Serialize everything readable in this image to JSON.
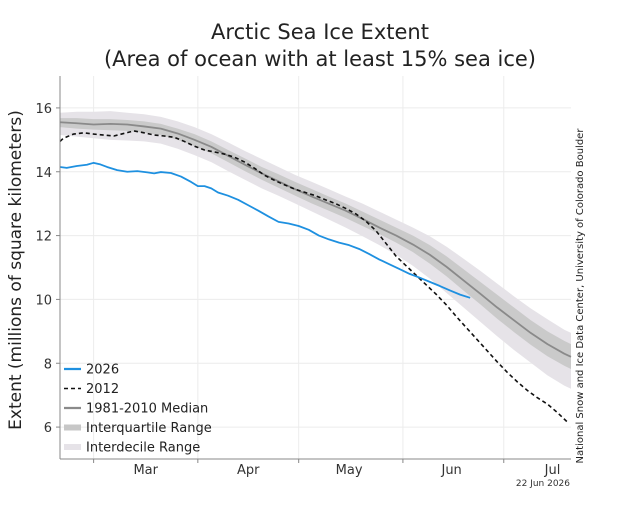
{
  "chart_data": {
    "type": "line",
    "title": "Arctic Sea Ice Extent",
    "subtitle": "(Area of ocean with at least 15% sea ice)",
    "ylabel": "Extent (millions of square kilometers)",
    "xlabel": "",
    "ylim": [
      5,
      17
    ],
    "yticks": [
      6,
      8,
      10,
      12,
      14,
      16
    ],
    "xlim": [
      50,
      202
    ],
    "month_ticks": [
      {
        "label": "Mar",
        "day": 75.5
      },
      {
        "label": "Apr",
        "day": 106
      },
      {
        "label": "May",
        "day": 136
      },
      {
        "label": "Jun",
        "day": 166.5
      },
      {
        "label": "Jul",
        "day": 196.5
      }
    ],
    "month_boundaries": [
      60,
      91,
      121,
      152,
      182
    ],
    "credit": "National Snow and Ice Data Center, University of Colorado Boulder",
    "date_stamp": "22 Jun 2026",
    "legend_position": "lower-left",
    "series": [
      {
        "name": "2026",
        "color": "#1e90e0",
        "style": "solid",
        "x": [
          50,
          52,
          55,
          58,
          60,
          62,
          64,
          67,
          70,
          73,
          76,
          78,
          80,
          83,
          86,
          89,
          91,
          93,
          95,
          97,
          100,
          103,
          106,
          109,
          112,
          115,
          118,
          121,
          124,
          127,
          130,
          133,
          136,
          139,
          142,
          145,
          148,
          151,
          154,
          157,
          160,
          163,
          166,
          169,
          172
        ],
        "y": [
          14.15,
          14.12,
          14.18,
          14.22,
          14.28,
          14.23,
          14.15,
          14.05,
          14.0,
          14.02,
          13.98,
          13.95,
          13.99,
          13.96,
          13.85,
          13.68,
          13.55,
          13.55,
          13.48,
          13.35,
          13.25,
          13.12,
          12.95,
          12.78,
          12.6,
          12.43,
          12.38,
          12.3,
          12.18,
          12.0,
          11.88,
          11.78,
          11.7,
          11.58,
          11.42,
          11.25,
          11.1,
          10.95,
          10.8,
          10.68,
          10.55,
          10.42,
          10.28,
          10.15,
          10.05
        ]
      },
      {
        "name": "2012",
        "color": "#111111",
        "style": "dashed",
        "x": [
          50,
          51,
          54,
          57,
          60,
          63,
          66,
          69,
          72,
          75,
          78,
          81,
          84,
          87,
          90,
          93,
          96,
          99,
          102,
          105,
          108,
          111,
          114,
          117,
          120,
          123,
          126,
          129,
          132,
          135,
          138,
          141,
          144,
          147,
          150,
          153,
          156,
          159,
          162,
          165,
          168,
          171,
          174,
          177,
          180,
          183,
          186,
          189,
          192,
          195,
          198,
          201
        ],
        "y": [
          14.95,
          15.05,
          15.18,
          15.22,
          15.18,
          15.15,
          15.12,
          15.2,
          15.28,
          15.22,
          15.15,
          15.12,
          15.08,
          14.95,
          14.8,
          14.68,
          14.62,
          14.55,
          14.45,
          14.3,
          14.1,
          13.88,
          13.72,
          13.58,
          13.45,
          13.35,
          13.25,
          13.12,
          13.0,
          12.85,
          12.68,
          12.45,
          12.15,
          11.75,
          11.35,
          11.05,
          10.75,
          10.45,
          10.15,
          9.82,
          9.45,
          9.1,
          8.75,
          8.4,
          8.05,
          7.72,
          7.42,
          7.15,
          6.92,
          6.72,
          6.45,
          6.15
        ]
      },
      {
        "name": "1981-2010 Median",
        "color": "#8a8a8a",
        "style": "solid",
        "x": [
          50,
          55,
          60,
          65,
          70,
          75,
          80,
          85,
          90,
          95,
          100,
          105,
          110,
          115,
          120,
          125,
          130,
          135,
          140,
          145,
          150,
          155,
          160,
          165,
          170,
          175,
          180,
          185,
          190,
          195,
          200,
          202
        ],
        "y": [
          15.55,
          15.52,
          15.48,
          15.5,
          15.48,
          15.42,
          15.35,
          15.2,
          15.0,
          14.78,
          14.5,
          14.22,
          13.95,
          13.7,
          13.45,
          13.22,
          13.0,
          12.78,
          12.52,
          12.25,
          12.0,
          11.72,
          11.4,
          11.02,
          10.6,
          10.18,
          9.75,
          9.35,
          8.95,
          8.6,
          8.3,
          8.2
        ]
      }
    ],
    "bands": [
      {
        "name": "Interquartile Range",
        "color": "#c7c7c7",
        "opacity": 0.9,
        "x": [
          50,
          55,
          60,
          65,
          70,
          75,
          80,
          85,
          90,
          95,
          100,
          105,
          110,
          115,
          120,
          125,
          130,
          135,
          140,
          145,
          150,
          155,
          160,
          165,
          170,
          175,
          180,
          185,
          190,
          195,
          200,
          202
        ],
        "upper": [
          15.68,
          15.68,
          15.65,
          15.65,
          15.62,
          15.58,
          15.5,
          15.35,
          15.18,
          14.95,
          14.68,
          14.42,
          14.15,
          13.92,
          13.68,
          13.45,
          13.22,
          13.0,
          12.75,
          12.5,
          12.25,
          12.0,
          11.7,
          11.35,
          10.95,
          10.55,
          10.15,
          9.75,
          9.35,
          9.0,
          8.7,
          8.6
        ],
        "lower": [
          15.4,
          15.35,
          15.32,
          15.3,
          15.28,
          15.22,
          15.15,
          15.0,
          14.8,
          14.58,
          14.3,
          14.02,
          13.75,
          13.5,
          13.25,
          13.0,
          12.78,
          12.55,
          12.3,
          12.05,
          11.78,
          11.48,
          11.12,
          10.72,
          10.28,
          9.85,
          9.4,
          8.98,
          8.58,
          8.22,
          7.92,
          7.82
        ]
      },
      {
        "name": "Interdecile Range",
        "color": "#e6e3e8",
        "opacity": 1,
        "x": [
          50,
          55,
          60,
          65,
          70,
          75,
          80,
          85,
          90,
          95,
          100,
          105,
          110,
          115,
          120,
          125,
          130,
          135,
          140,
          145,
          150,
          155,
          160,
          165,
          170,
          175,
          180,
          185,
          190,
          195,
          200,
          202
        ],
        "upper": [
          15.85,
          15.88,
          15.88,
          15.9,
          15.85,
          15.8,
          15.72,
          15.58,
          15.4,
          15.18,
          14.92,
          14.65,
          14.4,
          14.15,
          13.9,
          13.68,
          13.45,
          13.22,
          13.0,
          12.75,
          12.5,
          12.25,
          11.98,
          11.65,
          11.28,
          10.9,
          10.5,
          10.1,
          9.72,
          9.38,
          9.05,
          8.95
        ],
        "lower": [
          15.15,
          15.1,
          15.05,
          15.0,
          14.98,
          14.95,
          14.88,
          14.72,
          14.52,
          14.3,
          14.02,
          13.75,
          13.48,
          13.25,
          13.0,
          12.75,
          12.5,
          12.25,
          11.98,
          11.7,
          11.4,
          11.05,
          10.65,
          10.2,
          9.75,
          9.3,
          8.85,
          8.42,
          8.02,
          7.62,
          7.3,
          7.2
        ]
      }
    ]
  }
}
